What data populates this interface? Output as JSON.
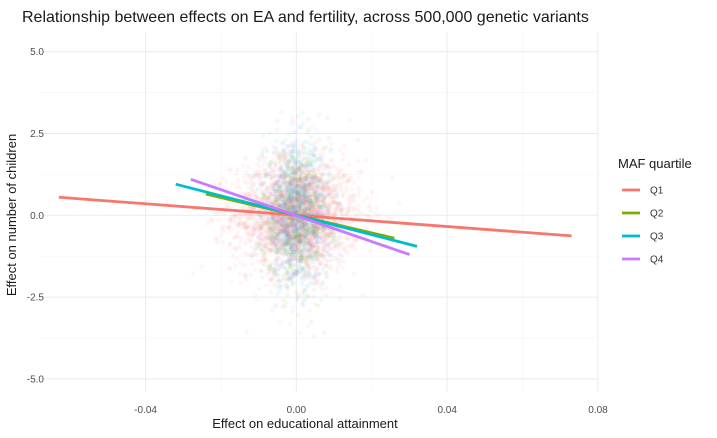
{
  "chart_data": {
    "type": "scatter",
    "title": "Relationship between effects on EA and fertility, across 500,000 genetic variants",
    "xlabel": "Effect on educational attainment",
    "ylabel": "Effect on number of children",
    "xlim": [
      -0.068,
      0.08
    ],
    "ylim": [
      -5.4,
      5.6
    ],
    "x_ticks": [
      -0.04,
      0.0,
      0.04,
      0.08
    ],
    "x_tick_labels": [
      "-0.04",
      "0.00",
      "0.04",
      "0.08"
    ],
    "y_ticks": [
      -5.0,
      -2.5,
      0.0,
      2.5,
      5.0
    ],
    "y_tick_labels": [
      "-5.0",
      "-2.5",
      "0.0",
      "2.5",
      "5.0"
    ],
    "grid": true,
    "legend": {
      "title": "MAF quartile",
      "placement": "right",
      "entries": [
        "Q1",
        "Q2",
        "Q3",
        "Q4"
      ]
    },
    "series": [
      {
        "name": "Q1",
        "color": "#F8766D",
        "scatter_spread": {
          "x_sd": 0.0085,
          "y_sd": 0.85
        },
        "fit_line": [
          [
            -0.063,
            0.55
          ],
          [
            0.073,
            -0.63
          ]
        ]
      },
      {
        "name": "Q2",
        "color": "#7CAE00",
        "scatter_spread": {
          "x_sd": 0.0045,
          "y_sd": 1.05
        },
        "fit_line": [
          [
            -0.024,
            0.65
          ],
          [
            0.026,
            -0.7
          ]
        ]
      },
      {
        "name": "Q3",
        "color": "#00BFC4",
        "scatter_spread": {
          "x_sd": 0.0045,
          "y_sd": 1.05
        },
        "fit_line": [
          [
            -0.032,
            0.95
          ],
          [
            0.032,
            -0.95
          ]
        ]
      },
      {
        "name": "Q4",
        "color": "#C77CFF",
        "scatter_spread": {
          "x_sd": 0.0045,
          "y_sd": 1.05
        },
        "fit_line": [
          [
            -0.028,
            1.1
          ],
          [
            0.03,
            -1.2
          ]
        ]
      }
    ]
  }
}
